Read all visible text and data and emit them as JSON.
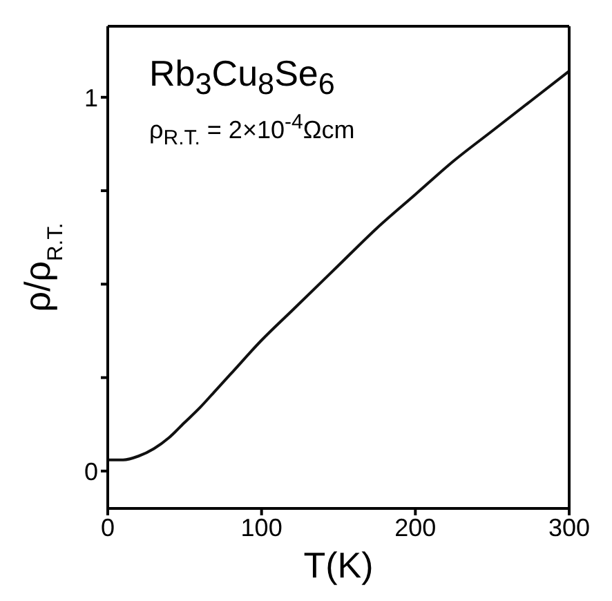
{
  "chart_data": {
    "type": "line",
    "xlabel": "T(K)",
    "ylabel": "ρ/ρ$_{R.T.}$",
    "annotations": [
      "Rb$_{3}$Cu$_{8}$Se$_{6}$",
      "ρ$_{R.T.}$ = 2×10$^{-4}$Ωcm"
    ],
    "x": [
      0,
      10,
      20,
      30,
      40,
      50,
      60,
      70,
      80,
      100,
      120,
      150,
      175,
      200,
      225,
      250,
      275,
      300
    ],
    "series": [
      {
        "color": "#111111",
        "values": [
          0.03,
          0.03,
          0.04,
          0.06,
          0.09,
          0.13,
          0.17,
          0.215,
          0.26,
          0.35,
          0.43,
          0.55,
          0.65,
          0.74,
          0.83,
          0.91,
          0.99,
          1.07
        ]
      }
    ],
    "xlim": [
      0,
      300
    ],
    "xticks": [
      0,
      100,
      200,
      300
    ],
    "ylim": [
      -0.1,
      1.19
    ],
    "yticks": [
      0,
      {
        "value": 0.25,
        "label": null
      },
      {
        "value": 0.5,
        "label": null
      },
      {
        "value": 0.75,
        "label": null
      },
      1
    ],
    "grid": false,
    "legend": false,
    "marker": "none",
    "line_style": "solid"
  }
}
